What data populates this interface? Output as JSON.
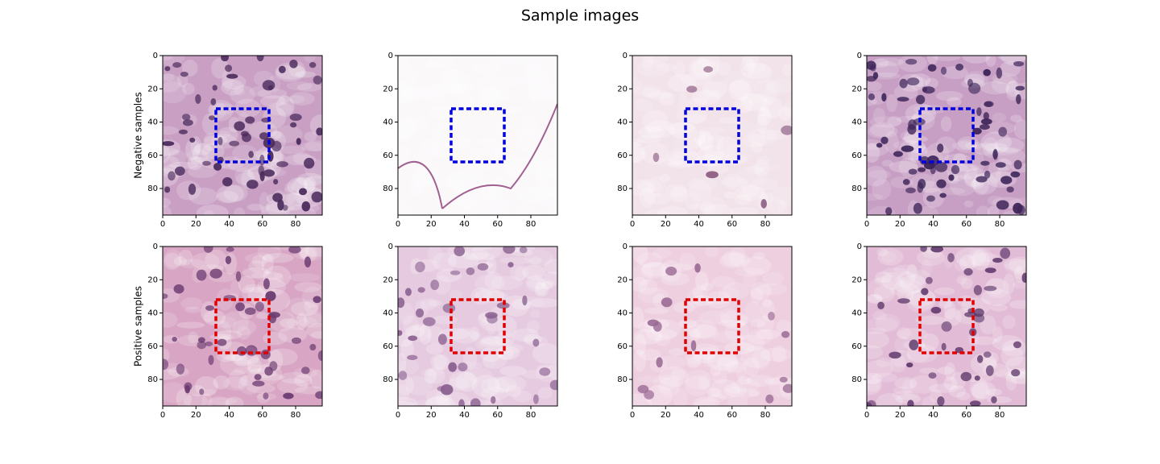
{
  "title": "Sample images",
  "chart_data": [
    {
      "type": "image",
      "ylabel": "Negative samples",
      "xlim": [
        0,
        96
      ],
      "ylim": [
        96,
        0
      ],
      "xticks": [
        0,
        20,
        40,
        60,
        80
      ],
      "yticks": [
        0,
        20,
        40,
        60,
        80
      ],
      "box": {
        "x0": 32,
        "x1": 64,
        "y0": 32,
        "y1": 64,
        "color": "#0000dd"
      }
    },
    {
      "type": "image",
      "xlim": [
        0,
        96
      ],
      "ylim": [
        96,
        0
      ],
      "xticks": [
        0,
        20,
        40,
        60,
        80
      ],
      "yticks": [
        0,
        20,
        40,
        60,
        80
      ],
      "box": {
        "x0": 32,
        "x1": 64,
        "y0": 32,
        "y1": 64,
        "color": "#0000dd"
      }
    },
    {
      "type": "image",
      "xlim": [
        0,
        96
      ],
      "ylim": [
        96,
        0
      ],
      "xticks": [
        0,
        20,
        40,
        60,
        80
      ],
      "yticks": [
        0,
        20,
        40,
        60,
        80
      ],
      "box": {
        "x0": 32,
        "x1": 64,
        "y0": 32,
        "y1": 64,
        "color": "#0000dd"
      }
    },
    {
      "type": "image",
      "xlim": [
        0,
        96
      ],
      "ylim": [
        96,
        0
      ],
      "xticks": [
        0,
        20,
        40,
        60,
        80
      ],
      "yticks": [
        0,
        20,
        40,
        60,
        80
      ],
      "box": {
        "x0": 32,
        "x1": 64,
        "y0": 32,
        "y1": 64,
        "color": "#0000dd"
      }
    },
    {
      "type": "image",
      "ylabel": "Positive samples",
      "xlim": [
        0,
        96
      ],
      "ylim": [
        96,
        0
      ],
      "xticks": [
        0,
        20,
        40,
        60,
        80
      ],
      "yticks": [
        0,
        20,
        40,
        60,
        80
      ],
      "box": {
        "x0": 32,
        "x1": 64,
        "y0": 32,
        "y1": 64,
        "color": "#e00000"
      }
    },
    {
      "type": "image",
      "xlim": [
        0,
        96
      ],
      "ylim": [
        96,
        0
      ],
      "xticks": [
        0,
        20,
        40,
        60,
        80
      ],
      "yticks": [
        0,
        20,
        40,
        60,
        80
      ],
      "box": {
        "x0": 32,
        "x1": 64,
        "y0": 32,
        "y1": 64,
        "color": "#e00000"
      }
    },
    {
      "type": "image",
      "xlim": [
        0,
        96
      ],
      "ylim": [
        96,
        0
      ],
      "xticks": [
        0,
        20,
        40,
        60,
        80
      ],
      "yticks": [
        0,
        20,
        40,
        60,
        80
      ],
      "box": {
        "x0": 32,
        "x1": 64,
        "y0": 32,
        "y1": 64,
        "color": "#e00000"
      }
    },
    {
      "type": "image",
      "xlim": [
        0,
        96
      ],
      "ylim": [
        96,
        0
      ],
      "xticks": [
        0,
        20,
        40,
        60,
        80
      ],
      "yticks": [
        0,
        20,
        40,
        60,
        80
      ],
      "box": {
        "x0": 32,
        "x1": 64,
        "y0": 32,
        "y1": 64,
        "color": "#e00000"
      }
    }
  ]
}
